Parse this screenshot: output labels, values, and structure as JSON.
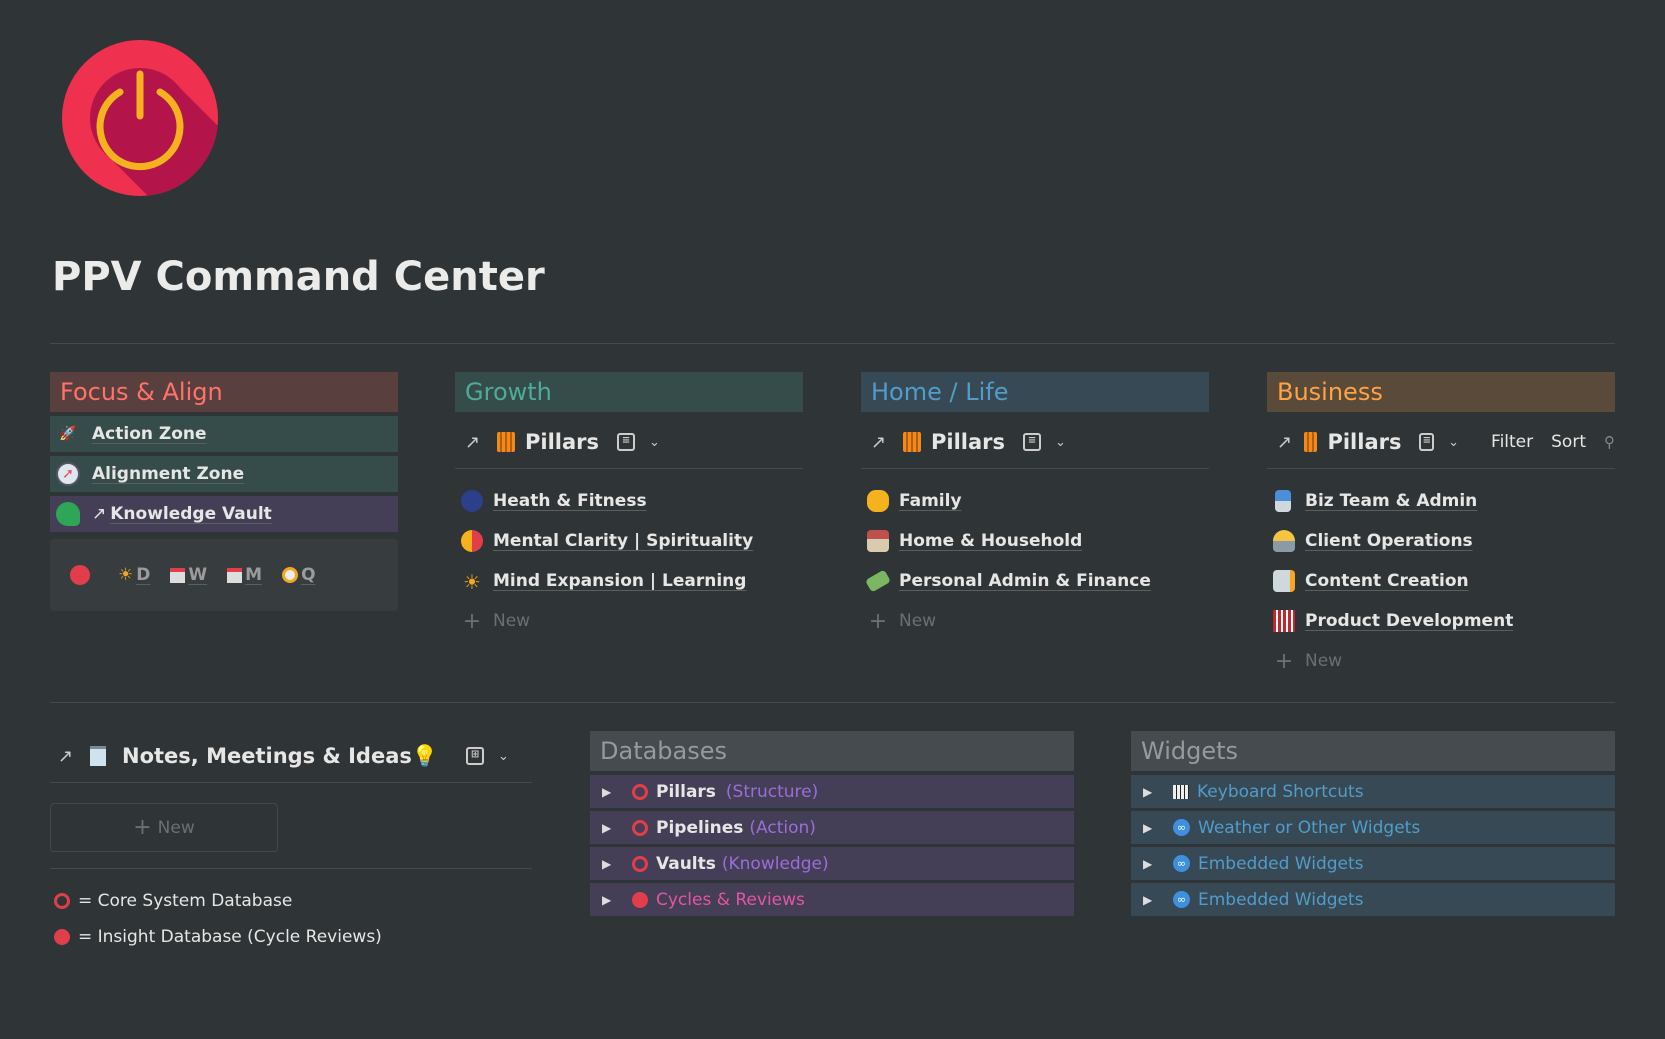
{
  "page": {
    "title": "PPV Command Center",
    "icon": "power-button-icon"
  },
  "colors": {
    "background": "#2f3437",
    "red": "#e03e4a",
    "orange": "#ffa344",
    "green": "#4dab9a",
    "blue": "#529cca",
    "purple": "#9a6dd7",
    "pink": "#e255a1"
  },
  "focus": {
    "header": "Focus & Align",
    "rows": [
      {
        "label": "Action Zone",
        "icon": "rocket-icon"
      },
      {
        "label": "Alignment Zone",
        "icon": "compass-icon"
      },
      {
        "label": "Knowledge Vault",
        "icon": "brain-head-icon",
        "link_arrow": "↗"
      }
    ],
    "cycles": [
      {
        "label": "D",
        "icon": "sun-icon"
      },
      {
        "label": "W",
        "icon": "calendar-icon"
      },
      {
        "label": "M",
        "icon": "calendar-grid-icon"
      },
      {
        "label": "Q",
        "icon": "compass-icon"
      }
    ]
  },
  "growth": {
    "header": "Growth",
    "view_title": "Pillars",
    "items": [
      "Heath & Fitness",
      "Mental Clarity | Spirituality",
      "Mind Expansion | Learning"
    ],
    "new_label": "New"
  },
  "home": {
    "header": "Home / Life",
    "view_title": "Pillars",
    "items": [
      "Family",
      "Home & Household",
      "Personal Admin & Finance"
    ],
    "new_label": "New"
  },
  "business": {
    "header": "Business",
    "view_title": "Pillars",
    "filter": "Filter",
    "sort": "Sort",
    "items": [
      "Biz Team & Admin",
      "Client Operations",
      "Content Creation",
      "Product Development"
    ],
    "new_label": "New"
  },
  "notes": {
    "title": "Notes, Meetings & Ideas💡",
    "new_label": "New",
    "legend": [
      "= Core System Database",
      "= Insight Database (Cycle Reviews)"
    ]
  },
  "databases": {
    "header": "Databases",
    "rows": [
      {
        "name": "Pillars",
        "sub": "(Structure)",
        "type": "core"
      },
      {
        "name": "Pipelines",
        "sub": "(Action)",
        "type": "core"
      },
      {
        "name": "Vaults",
        "sub": "(Knowledge)",
        "type": "core"
      },
      {
        "name": "",
        "sub": "Cycles & Reviews",
        "type": "insight"
      }
    ]
  },
  "widgets": {
    "header": "Widgets",
    "rows": [
      "Keyboard Shortcuts",
      "Weather or Other Widgets",
      "Embedded Widgets",
      "Embedded Widgets"
    ]
  }
}
